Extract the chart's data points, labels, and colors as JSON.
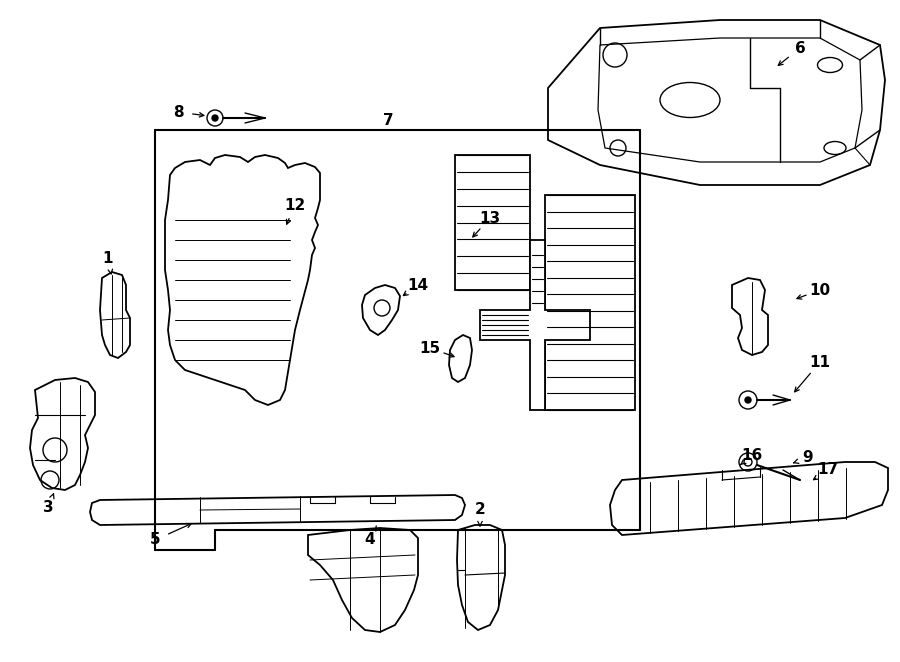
{
  "bg": "#ffffff",
  "lc": "#000000",
  "fw": 9.0,
  "fh": 6.62,
  "dpi": 100
}
